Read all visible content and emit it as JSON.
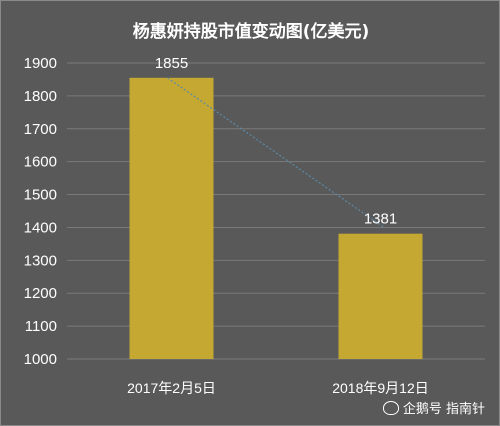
{
  "chart_data": {
    "type": "bar",
    "title": "杨惠妍持股市值变动图(亿美元)",
    "categories": [
      "2017年2月5日",
      "2018年9月12日"
    ],
    "values": [
      1855,
      1381
    ],
    "data_labels": [
      "1855",
      "1381"
    ],
    "ylim": [
      1000,
      1900
    ],
    "yticks": [
      1000,
      1100,
      1200,
      1300,
      1400,
      1500,
      1600,
      1700,
      1800,
      1900
    ],
    "xlabel": "",
    "ylabel": "",
    "grid": true,
    "trendline": true,
    "colors": {
      "background": "#595959",
      "bar": "#C4A832",
      "grid": "#7a7a7a",
      "trendline": "#5a8aa8",
      "text": "#ffffff"
    }
  },
  "watermark": {
    "icon": "penguin-icon",
    "text": "企鹅号 指南针"
  }
}
